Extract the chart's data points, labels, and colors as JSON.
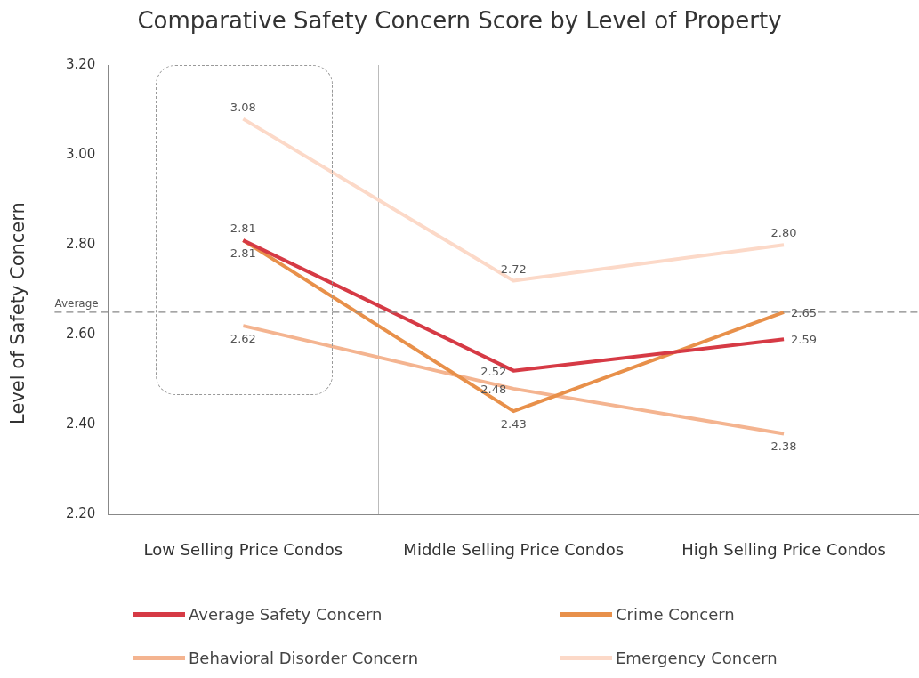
{
  "chart_data": {
    "type": "line",
    "title": "Comparative Safety Concern Score by Level of Property",
    "ylabel": "Level of Safety Concern",
    "categories": [
      "Low Selling Price Condos",
      "Middle Selling Price Condos",
      "High Selling Price Condos"
    ],
    "series": [
      {
        "name": "Average Safety Concern",
        "color": "#d63a45",
        "values": [
          2.81,
          2.52,
          2.59
        ],
        "value_labels": [
          "2.81",
          "2.52",
          "2.59"
        ]
      },
      {
        "name": "Crime Concern",
        "color": "#e8904a",
        "values": [
          2.81,
          2.43,
          2.65
        ],
        "value_labels": [
          "2.81",
          "2.43",
          "2.65"
        ]
      },
      {
        "name": "Behavioral Disorder Concern",
        "color": "#f4b490",
        "values": [
          2.62,
          2.48,
          2.38
        ],
        "value_labels": [
          "2.62",
          "2.48",
          "2.38"
        ]
      },
      {
        "name": "Emergency Concern",
        "color": "#fcd9c8",
        "values": [
          3.08,
          2.72,
          2.8
        ],
        "value_labels": [
          "3.08",
          "2.72",
          "2.80"
        ]
      }
    ],
    "ylim": [
      2.2,
      3.2
    ],
    "yticks": [
      {
        "value": 2.2,
        "label": "2.20"
      },
      {
        "value": 2.4,
        "label": "2.40"
      },
      {
        "value": 2.6,
        "label": "2.60"
      },
      {
        "value": 2.8,
        "label": "2.80"
      },
      {
        "value": 3.0,
        "label": "3.00"
      },
      {
        "value": 3.2,
        "label": "3.20"
      }
    ],
    "ref_lines": [
      {
        "axis": "y",
        "value": 2.65,
        "label": "Average",
        "line_style": "dashed",
        "color": "#888888"
      }
    ],
    "grid": "x",
    "legend": "bottom",
    "marker": "none",
    "line_style": "solid",
    "data_labels": true
  }
}
